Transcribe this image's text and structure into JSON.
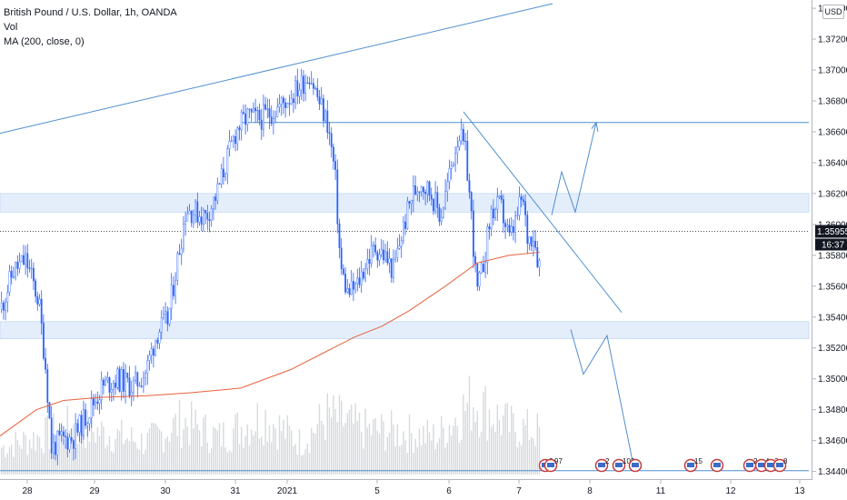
{
  "legend": {
    "symbol_line": "British Pound / U.S. Dollar, 1h, OANDA",
    "vol_label": "Vol",
    "ma_label": "MA (200, close, 0)"
  },
  "currency_button": "USD",
  "colors": {
    "up": "#2962ff",
    "down": "#2962ff",
    "ma": "#e8613c",
    "volume": "#d6d9de",
    "zone": "#dbe8fa",
    "trendline": "#4f8fd0",
    "badge": "#131722"
  },
  "chart_data": {
    "type": "candlestick",
    "ylim": [
      1.3438,
      1.3743
    ],
    "xlim": [
      0,
      870
    ],
    "y_ticks": [
      "1.37400",
      "1.37200",
      "1.37000",
      "1.36800",
      "1.36600",
      "1.36400",
      "1.36200",
      "1.36000",
      "1.35800",
      "1.35600",
      "1.35400",
      "1.35200",
      "1.35000",
      "1.34800",
      "1.34600",
      "1.34400"
    ],
    "x_ticks": [
      {
        "label": "28",
        "x": 30
      },
      {
        "label": "29",
        "x": 104
      },
      {
        "label": "30",
        "x": 182
      },
      {
        "label": "31",
        "x": 259
      },
      {
        "label": "2021",
        "x": 316
      },
      {
        "label": "5",
        "x": 415
      },
      {
        "label": "6",
        "x": 494
      },
      {
        "label": "7",
        "x": 571
      },
      {
        "label": "8",
        "x": 649
      },
      {
        "label": "11",
        "x": 727
      },
      {
        "label": "12",
        "x": 804
      },
      {
        "label": "13",
        "x": 880
      }
    ],
    "last_price": "1.35955",
    "countdown": "16:37",
    "path_points": [
      [
        0,
        1.3545
      ],
      [
        14,
        1.357
      ],
      [
        28,
        1.3577
      ],
      [
        42,
        1.355
      ],
      [
        50,
        1.3505
      ],
      [
        56,
        1.3455
      ],
      [
        66,
        1.346
      ],
      [
        80,
        1.3462
      ],
      [
        96,
        1.3478
      ],
      [
        112,
        1.3495
      ],
      [
        128,
        1.35
      ],
      [
        146,
        1.3495
      ],
      [
        160,
        1.3505
      ],
      [
        172,
        1.353
      ],
      [
        184,
        1.3538
      ],
      [
        194,
        1.3575
      ],
      [
        204,
        1.361
      ],
      [
        214,
        1.3608
      ],
      [
        226,
        1.3605
      ],
      [
        238,
        1.362
      ],
      [
        248,
        1.364
      ],
      [
        260,
        1.3662
      ],
      [
        272,
        1.367
      ],
      [
        284,
        1.3668
      ],
      [
        296,
        1.3672
      ],
      [
        310,
        1.3678
      ],
      [
        320,
        1.3684
      ],
      [
        330,
        1.369
      ],
      [
        340,
        1.3698
      ],
      [
        350,
        1.368
      ],
      [
        360,
        1.3665
      ],
      [
        368,
        1.3632
      ],
      [
        374,
        1.3572
      ],
      [
        382,
        1.3555
      ],
      [
        392,
        1.356
      ],
      [
        402,
        1.3575
      ],
      [
        412,
        1.3585
      ],
      [
        422,
        1.358
      ],
      [
        432,
        1.357
      ],
      [
        442,
        1.3595
      ],
      [
        452,
        1.3618
      ],
      [
        462,
        1.3628
      ],
      [
        474,
        1.362
      ],
      [
        484,
        1.3605
      ],
      [
        494,
        1.3632
      ],
      [
        504,
        1.366
      ],
      [
        512,
        1.3645
      ],
      [
        518,
        1.3605
      ],
      [
        524,
        1.3555
      ],
      [
        530,
        1.357
      ],
      [
        540,
        1.3608
      ],
      [
        550,
        1.3612
      ],
      [
        560,
        1.359
      ],
      [
        566,
        1.36
      ],
      [
        574,
        1.3618
      ],
      [
        580,
        1.359
      ],
      [
        586,
        1.3595
      ],
      [
        592,
        1.3575
      ]
    ],
    "ma_points": [
      [
        0,
        1.3463
      ],
      [
        40,
        1.348
      ],
      [
        70,
        1.3486
      ],
      [
        110,
        1.3488
      ],
      [
        160,
        1.3489
      ],
      [
        210,
        1.3491
      ],
      [
        265,
        1.3494
      ],
      [
        320,
        1.3506
      ],
      [
        360,
        1.3518
      ],
      [
        390,
        1.3527
      ],
      [
        420,
        1.3534
      ],
      [
        450,
        1.3544
      ],
      [
        490,
        1.356
      ],
      [
        525,
        1.3575
      ],
      [
        560,
        1.358
      ],
      [
        594,
        1.3582
      ]
    ],
    "volume_level_points": [
      [
        0,
        0.25
      ],
      [
        40,
        0.35
      ],
      [
        80,
        0.45
      ],
      [
        120,
        0.38
      ],
      [
        160,
        0.3
      ],
      [
        200,
        0.5
      ],
      [
        240,
        0.35
      ],
      [
        290,
        0.55
      ],
      [
        330,
        0.3
      ],
      [
        360,
        0.55
      ],
      [
        400,
        0.42
      ],
      [
        440,
        0.4
      ],
      [
        480,
        0.35
      ],
      [
        520,
        0.7
      ],
      [
        560,
        0.45
      ],
      [
        594,
        0.4
      ]
    ],
    "zones": [
      {
        "y1": 1.362,
        "y2": 1.3608,
        "x1": 0,
        "x2": 890
      },
      {
        "y1": 1.3537,
        "y2": 1.3526,
        "x1": 0,
        "x2": 890
      }
    ],
    "horizontal_lines": [
      {
        "y": 1.3666,
        "x1": 265,
        "x2": 890,
        "style": "solid"
      },
      {
        "y": 1.34405,
        "x1": 0,
        "x2": 890,
        "style": "solid"
      },
      {
        "y": 1.35955,
        "x1": 0,
        "x2": 890,
        "style": "dotted"
      }
    ],
    "trend_lines": [
      {
        "points": [
          [
            0,
            1.3659
          ],
          [
            608,
            1.3743
          ]
        ]
      },
      {
        "points": [
          [
            510,
            1.3673
          ],
          [
            684,
            1.3543
          ]
        ]
      },
      {
        "points": [
          [
            607,
            1.3606
          ],
          [
            618,
            1.3634
          ],
          [
            633,
            1.3608
          ],
          [
            656,
            1.3666
          ],
          [
            651,
            1.3662
          ],
          [
            656,
            1.3666
          ],
          [
            658,
            1.366
          ]
        ]
      },
      {
        "points": [
          [
            628,
            1.3532
          ],
          [
            642,
            1.3503
          ],
          [
            668,
            1.3528
          ],
          [
            698,
            1.3441
          ]
        ]
      }
    ],
    "events": [
      {
        "x": 600,
        "label": "2",
        "color": "#c43c3c"
      },
      {
        "x": 606,
        "label": "97",
        "color": "#c43c3c"
      },
      {
        "x": 662,
        "label": "2",
        "color": "#c43c3c"
      },
      {
        "x": 681,
        "label": "102",
        "color": "#c43c3c"
      },
      {
        "x": 699,
        "label": "",
        "color": "#c43c3c"
      },
      {
        "x": 760,
        "label": "15",
        "color": "#c43c3c"
      },
      {
        "x": 789,
        "label": "",
        "color": "#c43c3c"
      },
      {
        "x": 825,
        "label": "2",
        "color": "#c43c3c"
      },
      {
        "x": 838,
        "label": "4",
        "color": "#c43c3c"
      },
      {
        "x": 848,
        "label": "3",
        "color": "#c43c3c"
      },
      {
        "x": 858,
        "label": "8",
        "color": "#c43c3c"
      }
    ]
  }
}
